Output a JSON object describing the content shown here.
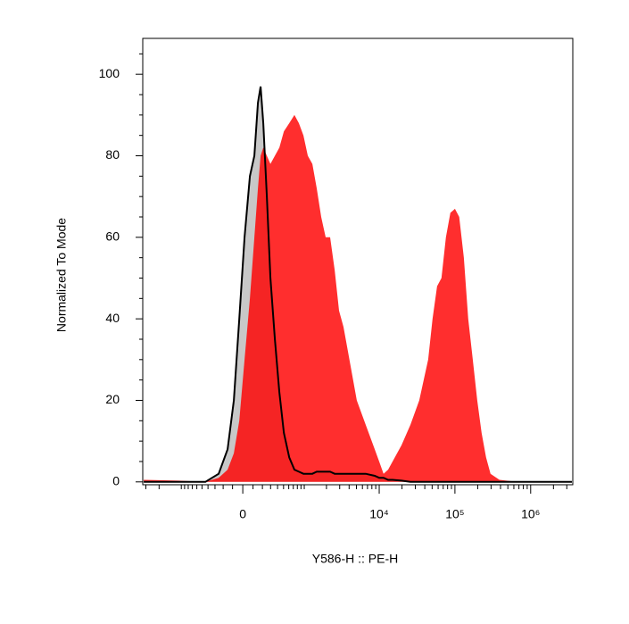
{
  "chart_data": {
    "type": "area",
    "x_label": "Y586-H :: PE-H",
    "y_label": "Normalized To Mode",
    "x_scale": "arcsinh",
    "x_scale_cofactor": 316,
    "x": [
      -3200,
      -1090,
      -442,
      -253,
      -151,
      -87,
      -34,
      17,
      69,
      114,
      151,
      180,
      210,
      253,
      298,
      360,
      428,
      507,
      611,
      727,
      841,
      973,
      1120,
      1290,
      1480,
      1700,
      1950,
      2240,
      2570,
      2940,
      3370,
      3860,
      5060,
      6640,
      8720,
      10000,
      11400,
      13100,
      15000,
      19700,
      25800,
      33800,
      44300,
      50600,
      58100,
      66400,
      76100,
      87200,
      99900,
      114000,
      131000,
      150000,
      172000,
      197000,
      225000,
      258000,
      295000,
      387000,
      666000,
      3500000
    ],
    "series": [
      {
        "color": "#c8c8c8",
        "line_color": "#000000",
        "values": [
          0,
          0,
          0,
          2,
          8,
          20,
          40,
          60,
          75,
          80,
          93,
          97,
          88,
          70,
          50,
          35,
          22,
          12,
          6,
          3,
          2.5,
          2,
          2,
          2,
          2.5,
          2.5,
          2.5,
          2.5,
          2,
          2,
          2,
          2,
          2,
          2,
          1.5,
          1,
          1,
          0.5,
          0.5,
          0.3,
          0,
          0,
          0,
          0,
          0,
          0,
          0,
          0,
          0,
          0,
          0,
          0,
          0,
          0,
          0,
          0,
          0,
          0,
          0,
          0
        ]
      },
      {
        "color": "#ff0000",
        "values": [
          0.5,
          0.3,
          0,
          1,
          3,
          7,
          15,
          30,
          45,
          60,
          72,
          80,
          82,
          80,
          78,
          80,
          82,
          86,
          88,
          90,
          88,
          85,
          80,
          78,
          72,
          65,
          60,
          60,
          52,
          42,
          38,
          32,
          20,
          14,
          8,
          5,
          2,
          3,
          5,
          9,
          14,
          20,
          30,
          40,
          48,
          50,
          60,
          66,
          67,
          65,
          55,
          40,
          30,
          20,
          12,
          6,
          2,
          0.5,
          0,
          0
        ]
      }
    ],
    "xlim": [
      -3300,
      3600000
    ],
    "xticks": [
      0,
      {
        "value": 10000,
        "label": "10⁴"
      },
      {
        "value": 100000,
        "label": "10⁵"
      },
      {
        "value": 1000000,
        "label": "10⁶"
      }
    ],
    "xminorticks": [
      -3000,
      -2000,
      -1000,
      -900,
      -800,
      -700,
      -600,
      -500,
      -400,
      -300,
      -200,
      -100,
      100,
      200,
      300,
      400,
      500,
      600,
      700,
      800,
      900,
      1000,
      2000,
      3000,
      4000,
      5000,
      6000,
      7000,
      8000,
      9000,
      20000,
      30000,
      40000,
      50000,
      60000,
      70000,
      80000,
      90000,
      200000,
      300000,
      400000,
      500000,
      600000,
      700000,
      800000,
      900000,
      2000000,
      3000000
    ],
    "ylim": [
      -0.7,
      108.8
    ],
    "yticks": [
      0,
      20,
      40,
      60,
      80,
      100
    ],
    "yminorticks": [
      5,
      10,
      15,
      25,
      30,
      35,
      45,
      50,
      55,
      65,
      70,
      75,
      85,
      90,
      95,
      105
    ]
  }
}
